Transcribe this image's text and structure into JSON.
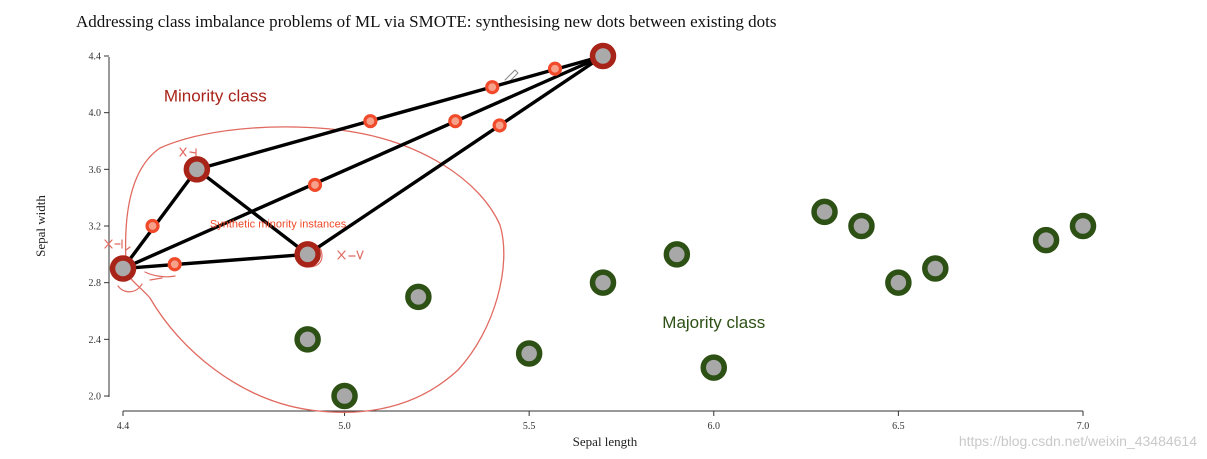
{
  "colors": {
    "minority": "#a82418",
    "minority_center": "#aaaaaa",
    "synthetic": "#f04a2a",
    "majority": "#2d5015",
    "majority_center": "#a8a8a8",
    "lines": "#000000",
    "handwriting": "#e06a60",
    "axis": "#333333"
  },
  "chart_data": {
    "type": "scatter",
    "title": "Addressing class imbalance problems of ML via SMOTE: synthesising new dots between existing dots",
    "xlabel": "Sepal length",
    "ylabel": "Sepal width",
    "xlim": [
      4.4,
      7.0
    ],
    "ylim": [
      2.0,
      4.4
    ],
    "x_ticks": [
      "4.4",
      "5.0",
      "5.5",
      "6.0",
      "6.5",
      "7.0"
    ],
    "y_ticks": [
      "2.0",
      "2.4",
      "2.8",
      "3.2",
      "3.6",
      "4.0",
      "4.4"
    ],
    "grid": false,
    "series": [
      {
        "name": "Minority class",
        "points": [
          {
            "x": 4.4,
            "y": 2.9
          },
          {
            "x": 4.6,
            "y": 3.6
          },
          {
            "x": 4.9,
            "y": 3.0
          },
          {
            "x": 5.7,
            "y": 4.4
          }
        ]
      },
      {
        "name": "Synthetic minority instances",
        "points": [
          {
            "x": 4.48,
            "y": 3.2
          },
          {
            "x": 4.54,
            "y": 2.93
          },
          {
            "x": 4.92,
            "y": 3.49
          },
          {
            "x": 5.07,
            "y": 3.94
          },
          {
            "x": 5.3,
            "y": 3.94
          },
          {
            "x": 5.4,
            "y": 4.18
          },
          {
            "x": 5.42,
            "y": 3.91
          },
          {
            "x": 5.57,
            "y": 4.31
          }
        ]
      },
      {
        "name": "Majority class",
        "points": [
          {
            "x": 4.9,
            "y": 2.4
          },
          {
            "x": 5.0,
            "y": 2.0
          },
          {
            "x": 5.2,
            "y": 2.7
          },
          {
            "x": 5.5,
            "y": 2.3
          },
          {
            "x": 5.7,
            "y": 2.8
          },
          {
            "x": 5.9,
            "y": 3.0
          },
          {
            "x": 6.0,
            "y": 2.2
          },
          {
            "x": 6.3,
            "y": 3.3
          },
          {
            "x": 6.4,
            "y": 3.2
          },
          {
            "x": 6.5,
            "y": 2.8
          },
          {
            "x": 6.6,
            "y": 2.9
          },
          {
            "x": 6.9,
            "y": 3.1
          },
          {
            "x": 7.0,
            "y": 3.2
          }
        ]
      }
    ],
    "connections": [
      {
        "from": {
          "x": 4.4,
          "y": 2.9
        },
        "to": {
          "x": 4.6,
          "y": 3.6
        }
      },
      {
        "from": {
          "x": 4.4,
          "y": 2.9
        },
        "to": {
          "x": 4.9,
          "y": 3.0
        }
      },
      {
        "from": {
          "x": 4.4,
          "y": 2.9
        },
        "to": {
          "x": 5.7,
          "y": 4.4
        }
      },
      {
        "from": {
          "x": 4.6,
          "y": 3.6
        },
        "to": {
          "x": 4.9,
          "y": 3.0
        }
      },
      {
        "from": {
          "x": 4.6,
          "y": 3.6
        },
        "to": {
          "x": 5.7,
          "y": 4.4
        }
      },
      {
        "from": {
          "x": 4.9,
          "y": 3.0
        },
        "to": {
          "x": 5.7,
          "y": 4.4
        }
      }
    ],
    "annotations": {
      "minority_label": {
        "text": "Minority class",
        "x": 4.65,
        "y": 4.08
      },
      "synthetic_label": {
        "text": "Synthetic minority instances",
        "x": 4.82,
        "y": 3.19
      },
      "majority_label": {
        "text": "Majority class",
        "x": 6.0,
        "y": 2.48
      }
    },
    "watermark": "https://blog.csdn.net/weixin_43484614"
  }
}
